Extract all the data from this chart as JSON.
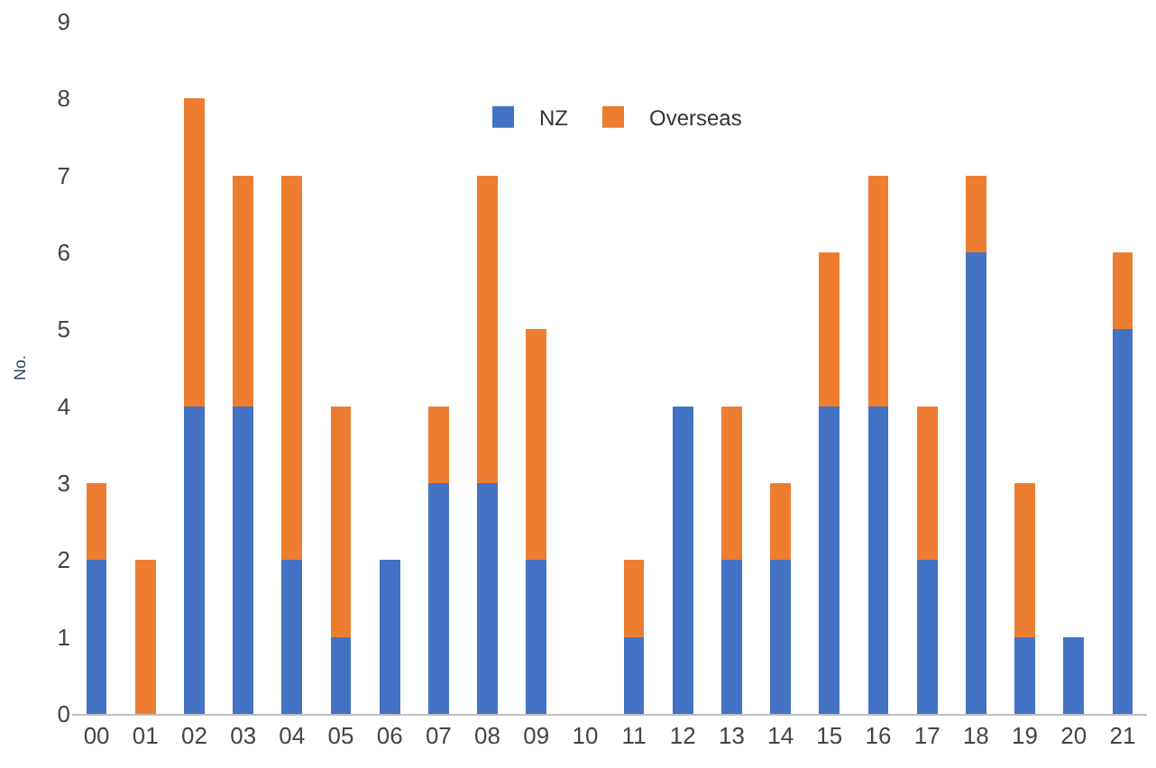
{
  "chart_data": {
    "type": "bar",
    "stacked": true,
    "ylabel": "No.",
    "categories": [
      "00",
      "01",
      "02",
      "03",
      "04",
      "05",
      "06",
      "07",
      "08",
      "09",
      "10",
      "11",
      "12",
      "13",
      "14",
      "15",
      "16",
      "17",
      "18",
      "19",
      "20",
      "21"
    ],
    "series": [
      {
        "name": "NZ",
        "color": "#4472c4",
        "values": [
          2,
          0,
          4,
          4,
          2,
          1,
          2,
          3,
          3,
          2,
          0,
          1,
          4,
          2,
          2,
          4,
          4,
          2,
          6,
          1,
          1,
          5
        ]
      },
      {
        "name": "Overseas",
        "color": "#ed7d31",
        "values": [
          1,
          2,
          4,
          3,
          5,
          3,
          0,
          1,
          4,
          3,
          0,
          1,
          0,
          2,
          1,
          2,
          3,
          2,
          1,
          2,
          0,
          1
        ]
      }
    ],
    "ylim": [
      0,
      9
    ],
    "yticks": [
      0,
      1,
      2,
      3,
      4,
      5,
      6,
      7,
      8,
      9
    ],
    "legend": "top"
  }
}
